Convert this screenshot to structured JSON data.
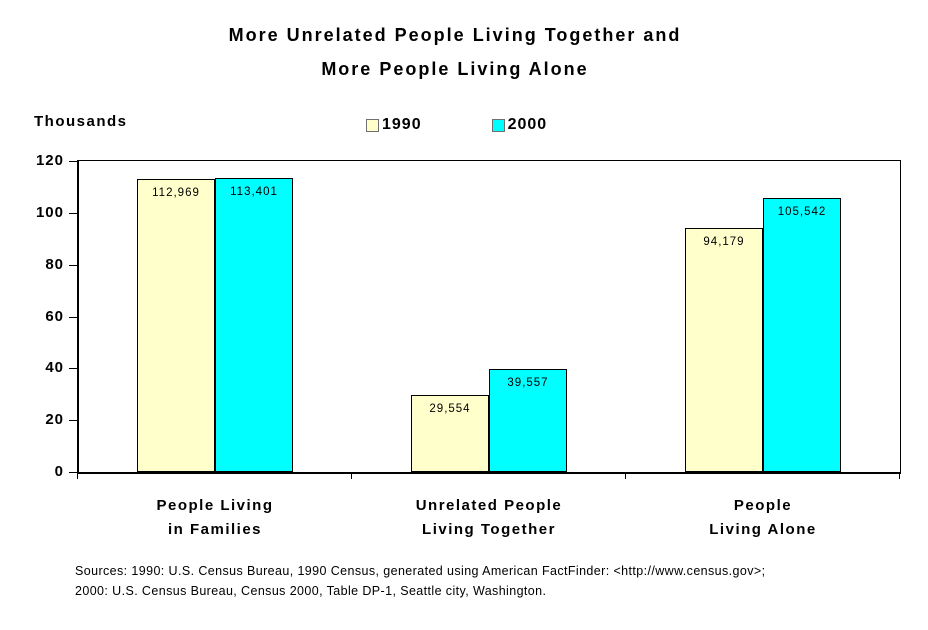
{
  "title": {
    "line1": "More Unrelated People Living Together and",
    "line2": "More People Living Alone"
  },
  "axis_unit_label": "Thousands",
  "legend": {
    "items": [
      {
        "label": "1990",
        "color": "#FFFFCC"
      },
      {
        "label": "2000",
        "color": "#00FFFF"
      }
    ]
  },
  "chart_data": {
    "type": "bar",
    "title": "More Unrelated People Living Together and More People Living Alone",
    "ylabel": "Thousands",
    "ylim": [
      0,
      120
    ],
    "yticks": [
      0,
      20,
      40,
      60,
      80,
      100,
      120
    ],
    "grid": "off",
    "legend_position": "top-center",
    "value_scale_divisor_for_axis": 1000,
    "categories": [
      [
        "People Living",
        "in Families"
      ],
      [
        "Unrelated People",
        "Living Together"
      ],
      [
        "People",
        "Living Alone"
      ]
    ],
    "series": [
      {
        "name": "1990",
        "color": "#FFFFCC",
        "values": [
          112969,
          29554,
          94179
        ],
        "labels": [
          "112,969",
          "29,554",
          "94,179"
        ]
      },
      {
        "name": "2000",
        "color": "#00FFFF",
        "values": [
          113401,
          39557,
          105542
        ],
        "labels": [
          "113,401",
          "39,557",
          "105,542"
        ]
      }
    ]
  },
  "sources": {
    "line1": "Sources: 1990: U.S. Census Bureau, 1990 Census, generated using American FactFinder: <http://www.census.gov>;",
    "line2": "2000: U.S. Census Bureau, Census 2000, Table DP-1, Seattle city, Washington."
  }
}
